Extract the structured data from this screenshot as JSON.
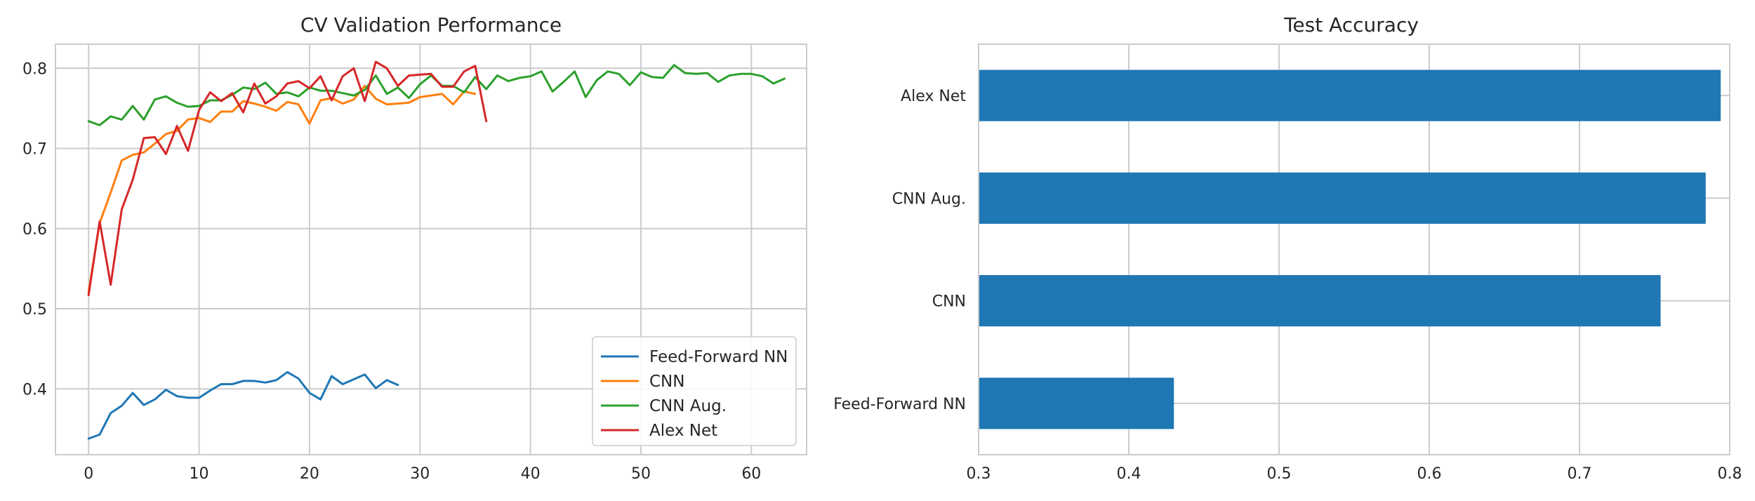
{
  "chart_data": [
    {
      "type": "line",
      "title": "CV Validation Performance",
      "xlabel": "",
      "ylabel": "",
      "xlim": [
        -3,
        65
      ],
      "ylim": [
        0.318,
        0.83
      ],
      "xticks": [
        0,
        10,
        20,
        30,
        40,
        50,
        60
      ],
      "yticks": [
        0.4,
        0.5,
        0.6,
        0.7,
        0.8
      ],
      "grid": true,
      "legend_position": "lower-right",
      "series": [
        {
          "name": "Feed-Forward NN",
          "color": "#1f77b4",
          "values": [
            0.338,
            0.343,
            0.37,
            0.379,
            0.395,
            0.38,
            0.387,
            0.399,
            0.391,
            0.389,
            0.389,
            0.398,
            0.406,
            0.406,
            0.41,
            0.41,
            0.408,
            0.411,
            0.421,
            0.413,
            0.395,
            0.387,
            0.416,
            0.406,
            0.412,
            0.418,
            0.401,
            0.411,
            0.405
          ]
        },
        {
          "name": "CNN",
          "color": "#ff7f0e",
          "values": [
            0.521,
            0.607,
            0.645,
            0.685,
            0.692,
            0.695,
            0.706,
            0.718,
            0.722,
            0.736,
            0.738,
            0.733,
            0.746,
            0.746,
            0.759,
            0.756,
            0.752,
            0.747,
            0.758,
            0.755,
            0.731,
            0.76,
            0.763,
            0.756,
            0.761,
            0.778,
            0.762,
            0.755,
            0.756,
            0.757,
            0.764,
            0.766,
            0.768,
            0.755,
            0.771,
            0.768
          ]
        },
        {
          "name": "CNN Aug.",
          "color": "#2ca02c",
          "values": [
            0.734,
            0.729,
            0.74,
            0.736,
            0.753,
            0.736,
            0.761,
            0.765,
            0.757,
            0.752,
            0.753,
            0.76,
            0.76,
            0.767,
            0.776,
            0.774,
            0.782,
            0.768,
            0.77,
            0.765,
            0.776,
            0.772,
            0.772,
            0.769,
            0.766,
            0.773,
            0.791,
            0.768,
            0.776,
            0.763,
            0.78,
            0.791,
            0.778,
            0.778,
            0.77,
            0.789,
            0.774,
            0.791,
            0.784,
            0.788,
            0.79,
            0.796,
            0.771,
            0.783,
            0.796,
            0.764,
            0.785,
            0.796,
            0.793,
            0.779,
            0.795,
            0.789,
            0.788,
            0.804,
            0.794,
            0.793,
            0.794,
            0.783,
            0.791,
            0.793,
            0.793,
            0.79,
            0.781,
            0.787
          ]
        },
        {
          "name": "Alex Net",
          "color": "#d62728",
          "values": [
            0.517,
            0.609,
            0.53,
            0.624,
            0.661,
            0.713,
            0.714,
            0.693,
            0.728,
            0.697,
            0.748,
            0.77,
            0.759,
            0.769,
            0.745,
            0.781,
            0.756,
            0.765,
            0.781,
            0.784,
            0.775,
            0.79,
            0.76,
            0.79,
            0.8,
            0.759,
            0.808,
            0.8,
            0.778,
            0.791,
            0.792,
            0.793,
            0.777,
            0.777,
            0.796,
            0.803,
            0.734
          ]
        }
      ]
    },
    {
      "type": "bar",
      "orientation": "horizontal",
      "title": "Test Accuracy",
      "xlabel": "",
      "ylabel": "",
      "xlim": [
        0.3,
        0.8
      ],
      "xticks": [
        0.3,
        0.4,
        0.5,
        0.6,
        0.7,
        0.8
      ],
      "grid": true,
      "color": "#1f77b4",
      "categories": [
        "Alex Net",
        "CNN Aug.",
        "CNN",
        "Feed-Forward NN"
      ],
      "values": [
        0.794,
        0.784,
        0.754,
        0.43
      ]
    }
  ]
}
